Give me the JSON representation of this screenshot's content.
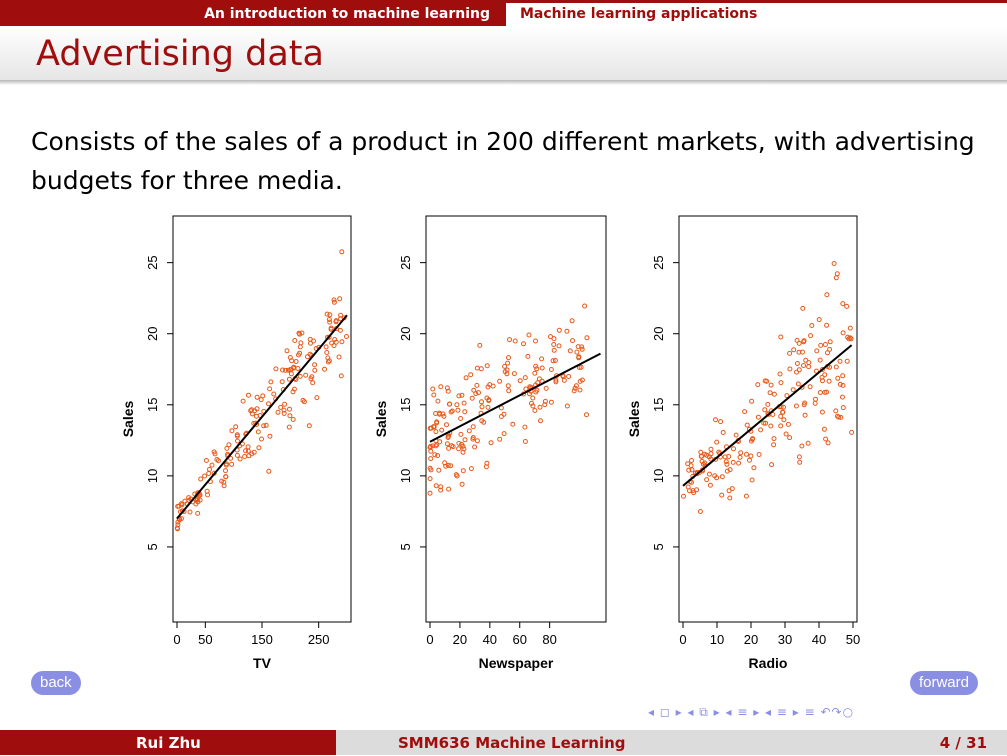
{
  "nav": {
    "section": "An introduction to machine learning",
    "subsection": "Machine learning applications"
  },
  "frame_title": "Advertising data",
  "body_text": "Consists of the sales of a product in 200 different markets, with advertising budgets for three media.",
  "buttons": {
    "back": "back",
    "forward": "forward"
  },
  "nav_symbols": "◂ ◻ ▸ ◂ ⧉ ▸ ◂ ≡ ▸ ◂ ≡ ▸ ≡ ↶↷○",
  "footer": {
    "author": "Rui Zhu",
    "course": "SMM636 Machine Learning",
    "page": "4 / 31"
  },
  "colors": {
    "accent": "#a00d0d",
    "points": "#e8591a",
    "button": "#8b8fe3"
  },
  "chart_data": [
    {
      "type": "scatter",
      "xlabel": "TV",
      "ylabel": "Sales",
      "xlim": [
        0,
        300
      ],
      "ylim": [
        0,
        28
      ],
      "xticks": [
        0,
        50,
        150,
        250
      ],
      "yticks": [
        5,
        10,
        15,
        20,
        25
      ],
      "fit_line": {
        "x": [
          0,
          300
        ],
        "y": [
          7.0,
          21.3
        ]
      },
      "noise_sd": 3.2
    },
    {
      "type": "scatter",
      "xlabel": "Newspaper",
      "ylabel": "Sales",
      "xlim": [
        0,
        115
      ],
      "ylim": [
        0,
        28
      ],
      "xticks": [
        0,
        20,
        40,
        60,
        80
      ],
      "yticks": [
        5,
        10,
        15,
        20,
        25
      ],
      "fit_line": {
        "x": [
          0,
          114
        ],
        "y": [
          12.4,
          18.6
        ]
      },
      "noise_sd": 4.8
    },
    {
      "type": "scatter",
      "xlabel": "Radio",
      "ylabel": "Sales",
      "xlim": [
        0,
        50
      ],
      "ylim": [
        0,
        28
      ],
      "xticks": [
        0,
        10,
        20,
        30,
        40,
        50
      ],
      "yticks": [
        5,
        10,
        15,
        20,
        25
      ],
      "fit_line": {
        "x": [
          0,
          49.6
        ],
        "y": [
          9.3,
          19.2
        ]
      },
      "noise_sd": 4.3
    }
  ]
}
